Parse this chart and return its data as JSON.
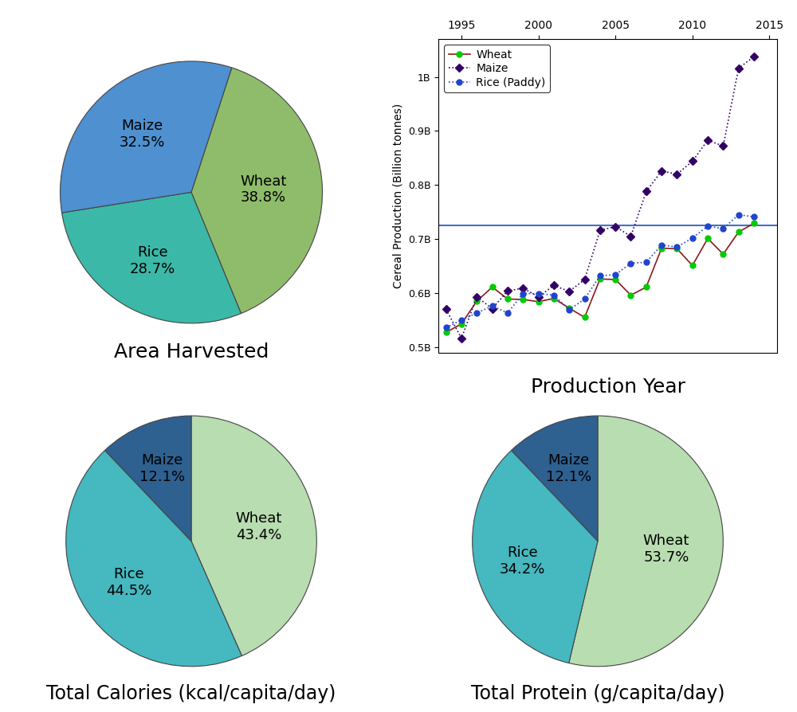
{
  "pie1": {
    "title": "Area Harvested",
    "values": [
      38.8,
      28.7,
      32.5
    ],
    "colors": [
      "#8fbc6a",
      "#3cb8a8",
      "#4f90d0"
    ],
    "startangle": 72,
    "label_names": [
      "Wheat",
      "Rice",
      "Maize"
    ],
    "label_pcts": [
      "38.8%",
      "28.7%",
      "32.5%"
    ],
    "label_radii": [
      0.55,
      0.6,
      0.58
    ]
  },
  "pie2": {
    "title": "Total Calories (kcal/capita/day)",
    "values": [
      43.4,
      44.5,
      12.1
    ],
    "colors": [
      "#b8ddb0",
      "#45b8c0",
      "#2e6090"
    ],
    "startangle": 90,
    "label_names": [
      "Wheat",
      "Rice",
      "Maize"
    ],
    "label_pcts": [
      "43.4%",
      "44.5%",
      "12.1%"
    ],
    "label_radii": [
      0.55,
      0.6,
      0.62
    ]
  },
  "pie3": {
    "title": "Total Protein (g/capita/day)",
    "values": [
      53.7,
      34.2,
      12.1
    ],
    "colors": [
      "#b8ddb0",
      "#45b8c0",
      "#2e6090"
    ],
    "startangle": 90,
    "label_names": [
      "Wheat",
      "Rice",
      "Maize"
    ],
    "label_pcts": [
      "53.7%",
      "34.2%",
      "12.1%"
    ],
    "label_radii": [
      0.55,
      0.62,
      0.62
    ]
  },
  "line": {
    "title": "Production Year",
    "ylabel": "Cereal Production (Billion tonnes)",
    "hline": 725000000,
    "hline_color": "#4472c4",
    "wheat_years": [
      1994,
      1995,
      1996,
      1997,
      1998,
      1999,
      2000,
      2001,
      2002,
      2003,
      2004,
      2005,
      2006,
      2007,
      2008,
      2009,
      2010,
      2011,
      2012,
      2013,
      2014
    ],
    "wheat_values": [
      527000000,
      543000000,
      585000000,
      611000000,
      589000000,
      588000000,
      584000000,
      590000000,
      572000000,
      555000000,
      626000000,
      625000000,
      596000000,
      611000000,
      683000000,
      682000000,
      651000000,
      701000000,
      672000000,
      713000000,
      729000000
    ],
    "maize_years": [
      1994,
      1995,
      1996,
      1997,
      1998,
      1999,
      2000,
      2001,
      2002,
      2003,
      2004,
      2005,
      2006,
      2007,
      2008,
      2009,
      2010,
      2011,
      2012,
      2013,
      2014
    ],
    "maize_values": [
      570000000,
      516000000,
      593000000,
      571000000,
      604000000,
      609000000,
      593000000,
      614000000,
      603000000,
      625000000,
      716000000,
      723000000,
      705000000,
      788000000,
      826000000,
      820000000,
      844000000,
      883000000,
      872000000,
      1016000000,
      1038000000
    ],
    "rice_years": [
      1994,
      1995,
      1996,
      1997,
      1998,
      1999,
      2000,
      2001,
      2002,
      2003,
      2004,
      2005,
      2006,
      2007,
      2008,
      2009,
      2010,
      2011,
      2012,
      2013,
      2014
    ],
    "rice_values": [
      536000000,
      550000000,
      563000000,
      576000000,
      563000000,
      599000000,
      599000000,
      596000000,
      569000000,
      589000000,
      632000000,
      634000000,
      655000000,
      657000000,
      689000000,
      685000000,
      702000000,
      724000000,
      719000000,
      745000000,
      741000000
    ],
    "wheat_line_color": "#8b1a1a",
    "wheat_marker_color": "#00cc00",
    "maize_line_color": "#330066",
    "maize_marker_color": "#330066",
    "rice_line_color": "#2244cc",
    "rice_marker_color": "#2244cc",
    "yticks": [
      500000000,
      600000000,
      700000000,
      800000000,
      900000000,
      1000000000
    ],
    "ytick_labels": [
      "0.5B",
      "0.6B",
      "0.7B",
      "0.8B",
      "0.9B",
      "1B"
    ],
    "xticks": [
      1995,
      2000,
      2005,
      2010,
      2015
    ]
  }
}
